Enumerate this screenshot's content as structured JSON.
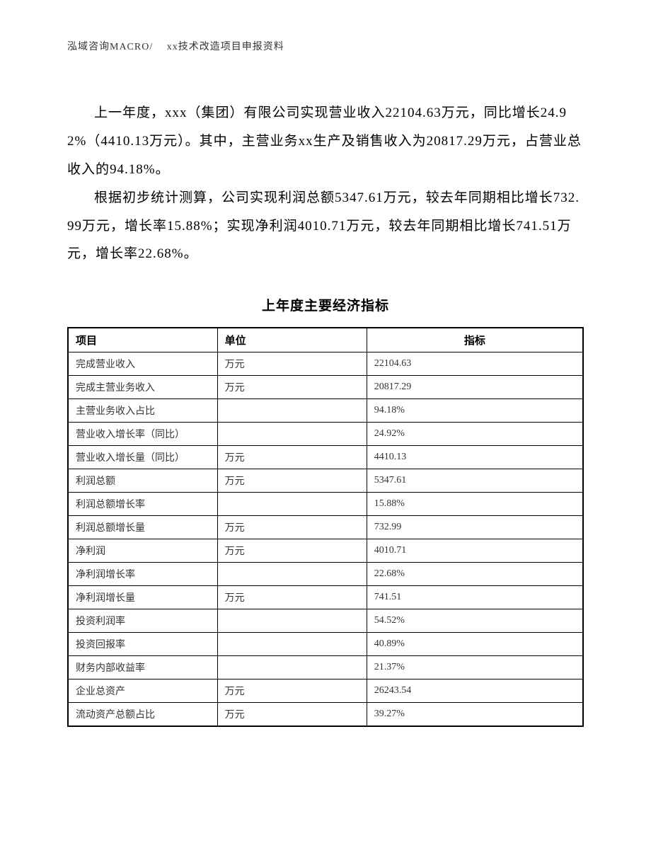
{
  "header": {
    "text": "泓域咨询MACRO/　 xx技术改造项目申报资料"
  },
  "paragraphs": {
    "p1": "上一年度，xxx（集团）有限公司实现营业收入22104.63万元，同比增长24.92%（4410.13万元）。其中，主营业务xx生产及销售收入为20817.29万元，占营业总收入的94.18%。",
    "p2": "根据初步统计测算，公司实现利润总额5347.61万元，较去年同期相比增长732.99万元，增长率15.88%；实现净利润4010.71万元，较去年同期相比增长741.51万元，增长率22.68%。"
  },
  "table": {
    "title": "上年度主要经济指标",
    "columns": {
      "item": "项目",
      "unit": "单位",
      "value": "指标"
    },
    "rows": [
      {
        "item": "完成营业收入",
        "unit": "万元",
        "value": "22104.63"
      },
      {
        "item": "完成主营业务收入",
        "unit": "万元",
        "value": "20817.29"
      },
      {
        "item": "主营业务收入占比",
        "unit": "",
        "value": "94.18%"
      },
      {
        "item": "营业收入增长率（同比）",
        "unit": "",
        "value": "24.92%"
      },
      {
        "item": "营业收入增长量（同比）",
        "unit": "万元",
        "value": "4410.13"
      },
      {
        "item": "利润总额",
        "unit": "万元",
        "value": "5347.61"
      },
      {
        "item": "利润总额增长率",
        "unit": "",
        "value": "15.88%"
      },
      {
        "item": "利润总额增长量",
        "unit": "万元",
        "value": "732.99"
      },
      {
        "item": "净利润",
        "unit": "万元",
        "value": "4010.71"
      },
      {
        "item": "净利润增长率",
        "unit": "",
        "value": "22.68%"
      },
      {
        "item": "净利润增长量",
        "unit": "万元",
        "value": "741.51"
      },
      {
        "item": "投资利润率",
        "unit": "",
        "value": "54.52%"
      },
      {
        "item": "投资回报率",
        "unit": "",
        "value": "40.89%"
      },
      {
        "item": "财务内部收益率",
        "unit": "",
        "value": "21.37%"
      },
      {
        "item": "企业总资产",
        "unit": "万元",
        "value": "26243.54"
      },
      {
        "item": "流动资产总额占比",
        "unit": "万元",
        "value": "39.27%"
      }
    ]
  }
}
